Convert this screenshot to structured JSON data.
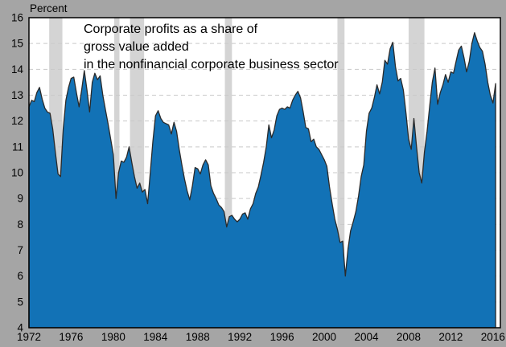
{
  "header": {
    "unit_label": "Percent"
  },
  "chart_data": {
    "type": "area",
    "title_lines": [
      "Corporate profits as a share of",
      "gross value added",
      "in the nonfinancial corporate business sector"
    ],
    "ylabel": "Percent",
    "xlim": [
      1972.0,
      2016.7
    ],
    "ylim": [
      4,
      16
    ],
    "x_ticks": [
      1972,
      1976,
      1980,
      1984,
      1988,
      1992,
      1996,
      2000,
      2004,
      2008,
      2012,
      2016
    ],
    "y_ticks": [
      4,
      5,
      6,
      7,
      8,
      9,
      10,
      11,
      12,
      13,
      14,
      15,
      16
    ],
    "grid": "horizontal-dashed",
    "legend": "none",
    "series_name": "Corporate profits share of gross value added (percent, quarterly)",
    "x_start": 1972.0,
    "x_step": 0.25,
    "values": [
      12.55,
      12.8,
      12.75,
      13.1,
      13.3,
      12.85,
      12.5,
      12.35,
      12.3,
      11.7,
      10.8,
      9.95,
      9.85,
      11.7,
      12.8,
      13.3,
      13.65,
      13.7,
      13.1,
      12.55,
      13.2,
      13.95,
      13.2,
      12.35,
      13.5,
      13.85,
      13.6,
      13.75,
      13.0,
      12.45,
      11.9,
      11.3,
      10.7,
      9.0,
      10.0,
      10.45,
      10.4,
      10.6,
      11.0,
      10.4,
      9.85,
      9.4,
      9.6,
      9.25,
      9.35,
      8.8,
      10.0,
      11.2,
      12.2,
      12.4,
      12.1,
      11.95,
      11.9,
      11.85,
      11.5,
      11.95,
      11.6,
      10.9,
      10.3,
      9.75,
      9.3,
      8.95,
      9.5,
      10.2,
      10.15,
      9.95,
      10.3,
      10.5,
      10.3,
      9.5,
      9.2,
      9.0,
      8.75,
      8.65,
      8.5,
      7.9,
      8.3,
      8.35,
      8.2,
      8.1,
      8.2,
      8.4,
      8.45,
      8.2,
      8.6,
      8.8,
      9.2,
      9.45,
      9.9,
      10.4,
      11.0,
      11.85,
      11.35,
      11.65,
      12.2,
      12.45,
      12.5,
      12.45,
      12.55,
      12.5,
      12.8,
      13.0,
      13.15,
      12.9,
      12.35,
      11.75,
      11.7,
      11.2,
      11.3,
      11.0,
      10.9,
      10.7,
      10.5,
      10.25,
      9.45,
      8.8,
      8.2,
      7.8,
      7.3,
      7.35,
      6.0,
      7.05,
      7.75,
      8.1,
      8.5,
      9.1,
      9.85,
      10.3,
      11.6,
      12.3,
      12.5,
      12.9,
      13.4,
      13.05,
      13.5,
      14.35,
      14.2,
      14.8,
      15.05,
      14.1,
      13.55,
      13.65,
      13.2,
      12.3,
      11.3,
      10.9,
      12.1,
      11.0,
      10.0,
      9.6,
      10.8,
      11.6,
      12.6,
      13.5,
      14.05,
      12.65,
      13.1,
      13.4,
      13.8,
      13.5,
      13.9,
      13.85,
      14.3,
      14.75,
      14.9,
      14.45,
      13.9,
      14.3,
      15.0,
      15.42,
      15.1,
      14.85,
      14.7,
      14.2,
      13.5,
      13.0,
      12.7,
      13.45
    ],
    "recession_bands": [
      [
        1973.92,
        1975.17
      ],
      [
        1980.08,
        1980.58
      ],
      [
        1981.58,
        1982.92
      ],
      [
        1990.58,
        1991.25
      ],
      [
        2001.25,
        2001.92
      ],
      [
        2008.0,
        2009.5
      ]
    ],
    "colors": {
      "area_fill": "#1272b6",
      "area_outline": "#2b2b2b",
      "recession_band": "#d4d4d4",
      "plot_background": "#ffffff",
      "outer_background": "#a5a5a5",
      "gridline": "#c9c9c9",
      "frame": "#000000",
      "text": "#000000"
    }
  }
}
